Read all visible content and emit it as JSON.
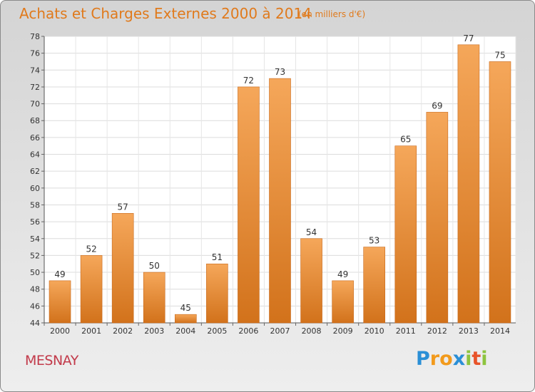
{
  "title": "Achats et Charges Externes 2000 à 2014",
  "subtitle": "(en milliers d'€)",
  "town": "MESNAY",
  "logo": {
    "letters": [
      "P",
      "r",
      "o",
      "x",
      "i",
      "t",
      "i"
    ],
    "colors": [
      "#2a8fd6",
      "#f29a1c",
      "#f29a1c",
      "#2a8fd6",
      "#8dc43f",
      "#e8542a",
      "#8dc43f"
    ]
  },
  "colors": {
    "bar_top": "#f5a75a",
    "bar_bottom": "#d2721b",
    "bar_edge": "#c8691c",
    "title": "#e07a1c",
    "town": "#c23a4a"
  },
  "chart_data": {
    "type": "bar",
    "categories": [
      "2000",
      "2001",
      "2002",
      "2003",
      "2004",
      "2005",
      "2006",
      "2007",
      "2008",
      "2009",
      "2010",
      "2011",
      "2012",
      "2013",
      "2014"
    ],
    "values": [
      49,
      52,
      57,
      50,
      45,
      51,
      72,
      73,
      54,
      49,
      53,
      65,
      69,
      77,
      75
    ],
    "ylim": [
      44,
      78
    ],
    "yticks": [
      44,
      46,
      48,
      50,
      52,
      54,
      56,
      58,
      60,
      62,
      64,
      66,
      68,
      70,
      72,
      74,
      76,
      78
    ],
    "grid": true
  }
}
